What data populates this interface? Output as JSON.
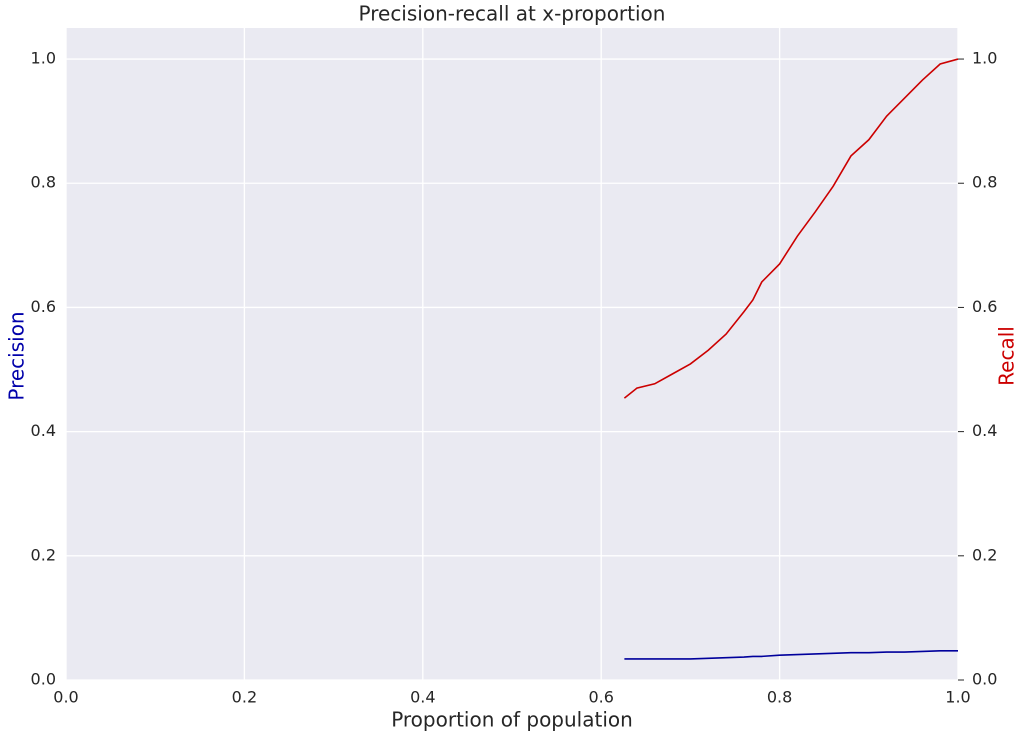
{
  "chart_data": {
    "type": "line",
    "title": "Precision-recall at x-proportion",
    "x_label": "Proportion of population",
    "y_label": "Precision",
    "y2_label": "Recall",
    "x": [
      0.626,
      0.64,
      0.66,
      0.68,
      0.7,
      0.72,
      0.74,
      0.76,
      0.77,
      0.78,
      0.8,
      0.82,
      0.84,
      0.86,
      0.88,
      0.9,
      0.92,
      0.94,
      0.96,
      0.98,
      1.0
    ],
    "series": [
      {
        "name": "Precision",
        "color": "#00009c",
        "axis": "y",
        "values": [
          0.034,
          0.034,
          0.034,
          0.034,
          0.034,
          0.035,
          0.036,
          0.037,
          0.038,
          0.038,
          0.04,
          0.041,
          0.042,
          0.043,
          0.044,
          0.044,
          0.045,
          0.045,
          0.046,
          0.047,
          0.047
        ]
      },
      {
        "name": "Recall",
        "color": "#cc0000",
        "axis": "y2",
        "values": [
          0.454,
          0.47,
          0.477,
          0.493,
          0.509,
          0.531,
          0.557,
          0.593,
          0.612,
          0.641,
          0.67,
          0.715,
          0.754,
          0.795,
          0.844,
          0.87,
          0.908,
          0.937,
          0.966,
          0.992,
          1.0
        ]
      }
    ],
    "xlim": [
      0,
      1
    ],
    "xticks": [
      {
        "value": 0,
        "label": "0.0"
      },
      0.2,
      0.4,
      0.6,
      0.8,
      {
        "value": 1,
        "label": "1.0"
      }
    ],
    "ylim": [
      0,
      1.05
    ],
    "yticks": [
      {
        "value": 0,
        "label": "0.0"
      },
      0.2,
      0.4,
      0.6,
      0.8,
      {
        "value": 1,
        "label": "1.0"
      }
    ],
    "y2lim": [
      0,
      1.05
    ],
    "y2ticks": [
      {
        "value": 0,
        "label": "0.0"
      },
      0.2,
      0.4,
      0.6,
      0.8,
      {
        "value": 1,
        "label": "1.0"
      }
    ],
    "y_label_color": "#0000aa",
    "y2_label_color": "#cc0000",
    "background": "#eaeaf2",
    "grid": true
  }
}
